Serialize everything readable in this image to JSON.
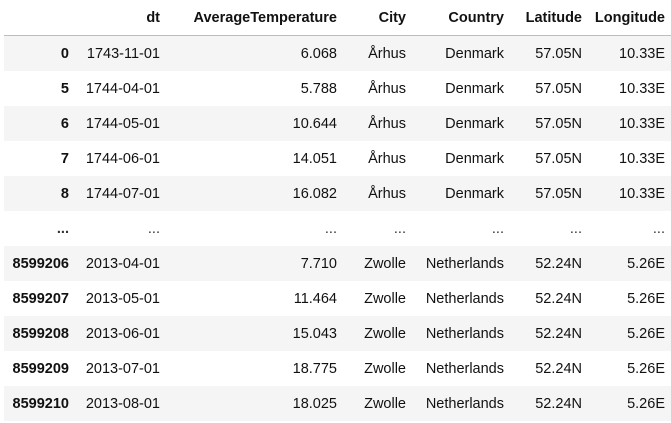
{
  "table": {
    "columns": [
      "",
      "dt",
      "AverageTemperature",
      "City",
      "Country",
      "Latitude",
      "Longitude"
    ],
    "rows": [
      {
        "index": "0",
        "dt": "1743-11-01",
        "AverageTemperature": "6.068",
        "City": "Århus",
        "Country": "Denmark",
        "Latitude": "57.05N",
        "Longitude": "10.33E"
      },
      {
        "index": "5",
        "dt": "1744-04-01",
        "AverageTemperature": "5.788",
        "City": "Århus",
        "Country": "Denmark",
        "Latitude": "57.05N",
        "Longitude": "10.33E"
      },
      {
        "index": "6",
        "dt": "1744-05-01",
        "AverageTemperature": "10.644",
        "City": "Århus",
        "Country": "Denmark",
        "Latitude": "57.05N",
        "Longitude": "10.33E"
      },
      {
        "index": "7",
        "dt": "1744-06-01",
        "AverageTemperature": "14.051",
        "City": "Århus",
        "Country": "Denmark",
        "Latitude": "57.05N",
        "Longitude": "10.33E"
      },
      {
        "index": "8",
        "dt": "1744-07-01",
        "AverageTemperature": "16.082",
        "City": "Århus",
        "Country": "Denmark",
        "Latitude": "57.05N",
        "Longitude": "10.33E"
      },
      {
        "index": "...",
        "dt": "...",
        "AverageTemperature": "...",
        "City": "...",
        "Country": "...",
        "Latitude": "...",
        "Longitude": "..."
      },
      {
        "index": "8599206",
        "dt": "2013-04-01",
        "AverageTemperature": "7.710",
        "City": "Zwolle",
        "Country": "Netherlands",
        "Latitude": "52.24N",
        "Longitude": "5.26E"
      },
      {
        "index": "8599207",
        "dt": "2013-05-01",
        "AverageTemperature": "11.464",
        "City": "Zwolle",
        "Country": "Netherlands",
        "Latitude": "52.24N",
        "Longitude": "5.26E"
      },
      {
        "index": "8599208",
        "dt": "2013-06-01",
        "AverageTemperature": "15.043",
        "City": "Zwolle",
        "Country": "Netherlands",
        "Latitude": "52.24N",
        "Longitude": "5.26E"
      },
      {
        "index": "8599209",
        "dt": "2013-07-01",
        "AverageTemperature": "18.775",
        "City": "Zwolle",
        "Country": "Netherlands",
        "Latitude": "52.24N",
        "Longitude": "5.26E"
      },
      {
        "index": "8599210",
        "dt": "2013-08-01",
        "AverageTemperature": "18.025",
        "City": "Zwolle",
        "Country": "Netherlands",
        "Latitude": "52.24N",
        "Longitude": "5.26E"
      }
    ]
  }
}
